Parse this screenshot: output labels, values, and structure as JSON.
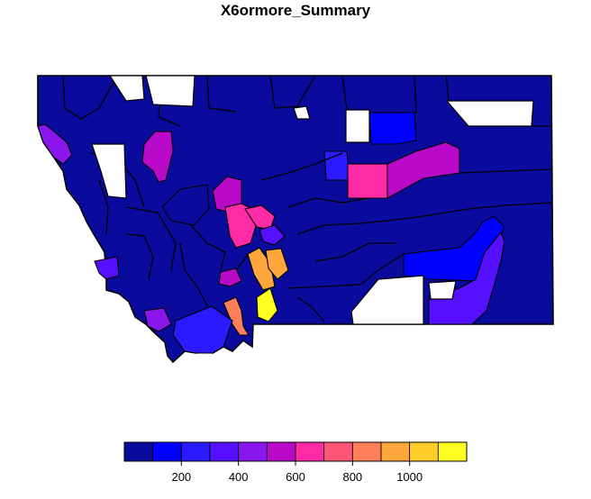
{
  "title": "X6ormore_Summary",
  "legend": {
    "colors": [
      "#0a0a9c",
      "#0000ff",
      "#2b19ff",
      "#5511ff",
      "#8a16ee",
      "#b80ac8",
      "#ff2aa6",
      "#ff5577",
      "#ff7f5a",
      "#ffa73d",
      "#ffcd2a",
      "#ffff22"
    ],
    "breaks": [
      0,
      100,
      200,
      300,
      400,
      500,
      600,
      700,
      800,
      900,
      1000,
      1100,
      1200
    ],
    "tick_values": [
      200,
      400,
      600,
      800,
      1000
    ],
    "tick_labels": [
      "200",
      "400",
      "600",
      "800",
      "1000"
    ]
  },
  "regions": [
    {
      "name": "flathead-fill",
      "color": "#0a0a9c"
    },
    {
      "name": "northwest-purple",
      "color": "#8a16ee"
    },
    {
      "name": "northcentral-blue",
      "color": "#0000ff"
    },
    {
      "name": "hill-region",
      "color": "#2b19ff"
    },
    {
      "name": "blaine-pink",
      "color": "#ff2aa6"
    },
    {
      "name": "phillips-magenta",
      "color": "#b80ac8"
    },
    {
      "name": "lake-magenta",
      "color": "#b80ac8"
    },
    {
      "name": "lewis-clark-magenta",
      "color": "#b80ac8"
    },
    {
      "name": "helena-pink",
      "color": "#ff2aa6"
    },
    {
      "name": "helena-pink-2",
      "color": "#ff2aa6"
    },
    {
      "name": "meagher-violet",
      "color": "#5511ff"
    },
    {
      "name": "gallatin-orange",
      "color": "#ffa73d"
    },
    {
      "name": "park-orange",
      "color": "#ffa73d"
    },
    {
      "name": "carbon-yellow",
      "color": "#ffff22"
    },
    {
      "name": "madison-salmon",
      "color": "#ff7f5a"
    },
    {
      "name": "beaverhead-blue",
      "color": "#2b19ff"
    },
    {
      "name": "ravalli-violet",
      "color": "#5511ff"
    },
    {
      "name": "mineral-violet",
      "color": "#8a16ee"
    },
    {
      "name": "deerlodge-magenta",
      "color": "#b80ac8"
    },
    {
      "name": "eastern-blue",
      "color": "#0000ff"
    },
    {
      "name": "big-horn-violet",
      "color": "#5511ff"
    }
  ]
}
